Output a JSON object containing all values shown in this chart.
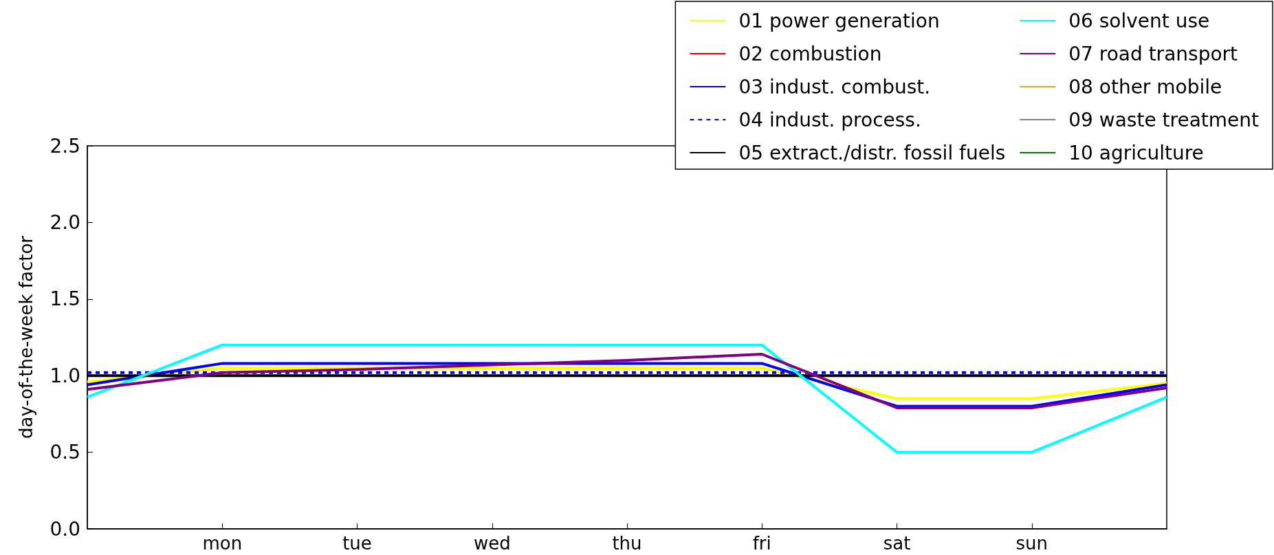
{
  "chart_data": {
    "type": "line",
    "ylabel": "day-of-the-week factor",
    "categories": [
      null,
      "mon",
      "tue",
      "wed",
      "thu",
      "fri",
      "sat",
      "sun",
      null
    ],
    "ylim": [
      0,
      2.5
    ],
    "yticks": [
      {
        "value": 0,
        "label": "0.0"
      },
      {
        "value": 0.5,
        "label": "0.5"
      },
      {
        "value": 1,
        "label": "1.0"
      },
      {
        "value": 1.5,
        "label": "1.5"
      },
      {
        "value": 2,
        "label": "2.0"
      },
      {
        "value": 2.5,
        "label": "2.5"
      }
    ],
    "grid": false,
    "legend": "top right",
    "marker": "none",
    "line_style": "solid",
    "series": [
      {
        "name": "01 power generation",
        "color": "#ffff00",
        "values": [
          0.96,
          1.05,
          1.05,
          1.05,
          1.05,
          1.05,
          0.85,
          0.85,
          0.95
        ]
      },
      {
        "name": "02 combustion",
        "color": "#ff0000",
        "values": [
          null,
          null,
          null,
          null,
          null,
          null,
          null,
          null,
          null
        ]
      },
      {
        "name": "03 indust. combust.",
        "color": "#0000ff",
        "values": [
          0.94,
          1.08,
          1.08,
          1.08,
          1.08,
          1.08,
          0.8,
          0.8,
          0.94
        ]
      },
      {
        "name": "04 indust. process.",
        "color": "#0000ff",
        "line_style": "dashed",
        "values": [
          1.02,
          1.02,
          1.02,
          1.02,
          1.02,
          1.02,
          1.02,
          1.02,
          1.02
        ]
      },
      {
        "name": "05 extract./distr. fossil fuels",
        "color": "#000000",
        "values": [
          1,
          1,
          1,
          1,
          1,
          1,
          1,
          1,
          1
        ]
      },
      {
        "name": "06 solvent use",
        "color": "#00ffff",
        "values": [
          0.86,
          1.2,
          1.2,
          1.2,
          1.2,
          1.2,
          0.5,
          0.5,
          0.86
        ]
      },
      {
        "name": "07 road transport",
        "color": "#800080",
        "values": [
          0.91,
          1.02,
          1.04,
          1.07,
          1.1,
          1.14,
          0.79,
          0.79,
          0.92
        ]
      },
      {
        "name": "08 other mobile",
        "color": "#ffa500",
        "values": [
          null,
          null,
          null,
          null,
          null,
          null,
          null,
          null,
          null
        ]
      },
      {
        "name": "09 waste treatment",
        "color": "#808080",
        "values": [
          null,
          null,
          null,
          null,
          null,
          null,
          null,
          null,
          null
        ]
      },
      {
        "name": "10 agriculture",
        "color": "#008000",
        "values": [
          null,
          null,
          null,
          null,
          null,
          null,
          null,
          null,
          null
        ]
      }
    ]
  }
}
